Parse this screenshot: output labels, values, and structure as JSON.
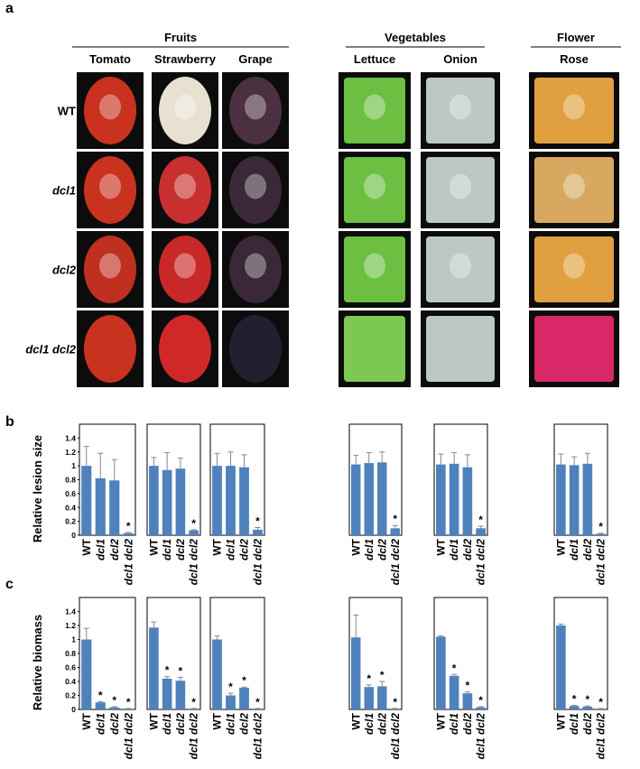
{
  "figure": {
    "panel_a": {
      "label": "a",
      "groups": [
        {
          "label": "Fruits",
          "columns": [
            "Tomato",
            "Strawberry",
            "Grape"
          ]
        },
        {
          "label": "Vegetables",
          "columns": [
            "Lettuce",
            "Onion"
          ]
        },
        {
          "label": "Flower",
          "columns": [
            "Rose"
          ]
        }
      ],
      "rows": [
        "WT",
        "dcl1",
        "dcl2",
        "dcl1 dcl2"
      ]
    },
    "panel_b": {
      "label": "b"
    },
    "panel_c": {
      "label": "c"
    }
  },
  "chart_data": [
    {
      "type": "bar",
      "ylabel": "Relative lesion size",
      "categories": [
        "WT",
        "dcl1",
        "dcl2",
        "dcl1 dcl2"
      ],
      "values": [
        1.0,
        0.82,
        0.79,
        0.03
      ],
      "errors": [
        0.28,
        0.36,
        0.3,
        0.01
      ],
      "markers": [
        null,
        null,
        null,
        "*"
      ],
      "color": "#4f81bd",
      "ylim": [
        0,
        1.6
      ],
      "yticks": [
        0,
        0.2,
        0.4,
        0.6,
        0.8,
        1,
        1.2,
        1.4
      ]
    },
    {
      "type": "bar",
      "categories": [
        "WT",
        "dcl1",
        "dcl2",
        "dcl1 dcl2"
      ],
      "values": [
        1.0,
        0.94,
        0.96,
        0.07
      ],
      "errors": [
        0.12,
        0.25,
        0.15,
        0.01
      ],
      "markers": [
        null,
        null,
        null,
        "*"
      ],
      "color": "#4f81bd",
      "ylim": [
        0,
        1.6
      ]
    },
    {
      "type": "bar",
      "categories": [
        "WT",
        "dcl1",
        "dcl2",
        "dcl1 dcl2"
      ],
      "values": [
        1.0,
        1.0,
        0.98,
        0.08
      ],
      "errors": [
        0.18,
        0.2,
        0.18,
        0.03
      ],
      "markers": [
        null,
        null,
        null,
        "*"
      ],
      "color": "#4f81bd",
      "ylim": [
        0,
        1.6
      ]
    },
    {
      "type": "bar",
      "categories": [
        "WT",
        "dcl1",
        "dcl2",
        "dcl1 dcl2"
      ],
      "values": [
        1.02,
        1.04,
        1.05,
        0.1
      ],
      "errors": [
        0.13,
        0.15,
        0.15,
        0.04
      ],
      "markers": [
        null,
        null,
        null,
        "*"
      ],
      "color": "#4f81bd",
      "ylim": [
        0,
        1.6
      ]
    },
    {
      "type": "bar",
      "categories": [
        "WT",
        "dcl1",
        "dcl2",
        "dcl1 dcl2"
      ],
      "values": [
        1.02,
        1.03,
        0.98,
        0.1
      ],
      "errors": [
        0.15,
        0.16,
        0.18,
        0.03
      ],
      "markers": [
        null,
        null,
        null,
        "*"
      ],
      "color": "#4f81bd",
      "ylim": [
        0,
        1.6
      ]
    },
    {
      "type": "bar",
      "categories": [
        "WT",
        "dcl1",
        "dcl2",
        "dcl1 dcl2"
      ],
      "values": [
        1.02,
        1.01,
        1.03,
        0.02
      ],
      "errors": [
        0.15,
        0.12,
        0.15,
        0.01
      ],
      "markers": [
        null,
        null,
        null,
        "*"
      ],
      "color": "#4f81bd",
      "ylim": [
        0,
        1.6
      ]
    },
    {
      "type": "bar",
      "ylabel": "Relative biomass",
      "categories": [
        "WT",
        "dcl1",
        "dcl2",
        "dcl1 dcl2"
      ],
      "values": [
        1.0,
        0.1,
        0.03,
        0.01
      ],
      "errors": [
        0.16,
        0.01,
        0.01,
        0.005
      ],
      "markers": [
        null,
        "*",
        "*",
        "*"
      ],
      "color": "#4f81bd",
      "ylim": [
        0,
        1.6
      ],
      "yticks": [
        0,
        0.2,
        0.4,
        0.6,
        0.8,
        1,
        1.2,
        1.4
      ]
    },
    {
      "type": "bar",
      "categories": [
        "WT",
        "dcl1",
        "dcl2",
        "dcl1 dcl2"
      ],
      "values": [
        1.17,
        0.44,
        0.41,
        0.01
      ],
      "errors": [
        0.08,
        0.03,
        0.05,
        0.005
      ],
      "markers": [
        null,
        "*",
        "*",
        "*"
      ],
      "color": "#4f81bd",
      "ylim": [
        0,
        1.6
      ]
    },
    {
      "type": "bar",
      "categories": [
        "WT",
        "dcl1",
        "dcl2",
        "dcl1 dcl2"
      ],
      "values": [
        1.0,
        0.2,
        0.31,
        0.01
      ],
      "errors": [
        0.05,
        0.03,
        0.01,
        0.005
      ],
      "markers": [
        null,
        "*",
        "*",
        "*"
      ],
      "color": "#4f81bd",
      "ylim": [
        0,
        1.6
      ]
    },
    {
      "type": "bar",
      "categories": [
        "WT",
        "dcl1",
        "dcl2",
        "dcl1 dcl2"
      ],
      "values": [
        1.03,
        0.32,
        0.33,
        0.01
      ],
      "errors": [
        0.32,
        0.03,
        0.07,
        0.005
      ],
      "markers": [
        null,
        "*",
        "*",
        "*"
      ],
      "color": "#4f81bd",
      "ylim": [
        0,
        1.6
      ]
    },
    {
      "type": "bar",
      "categories": [
        "WT",
        "dcl1",
        "dcl2",
        "dcl1 dcl2"
      ],
      "values": [
        1.04,
        0.48,
        0.23,
        0.03
      ],
      "errors": [
        0.01,
        0.02,
        0.02,
        0.01
      ],
      "markers": [
        null,
        "*",
        "*",
        "*"
      ],
      "color": "#4f81bd",
      "ylim": [
        0,
        1.6
      ]
    },
    {
      "type": "bar",
      "categories": [
        "WT",
        "dcl1",
        "dcl2",
        "dcl1 dcl2"
      ],
      "values": [
        1.2,
        0.05,
        0.04,
        0.01
      ],
      "errors": [
        0.02,
        0.01,
        0.01,
        0.005
      ],
      "markers": [
        null,
        "*",
        "*",
        "*"
      ],
      "color": "#4f81bd",
      "ylim": [
        0,
        1.6
      ]
    }
  ]
}
